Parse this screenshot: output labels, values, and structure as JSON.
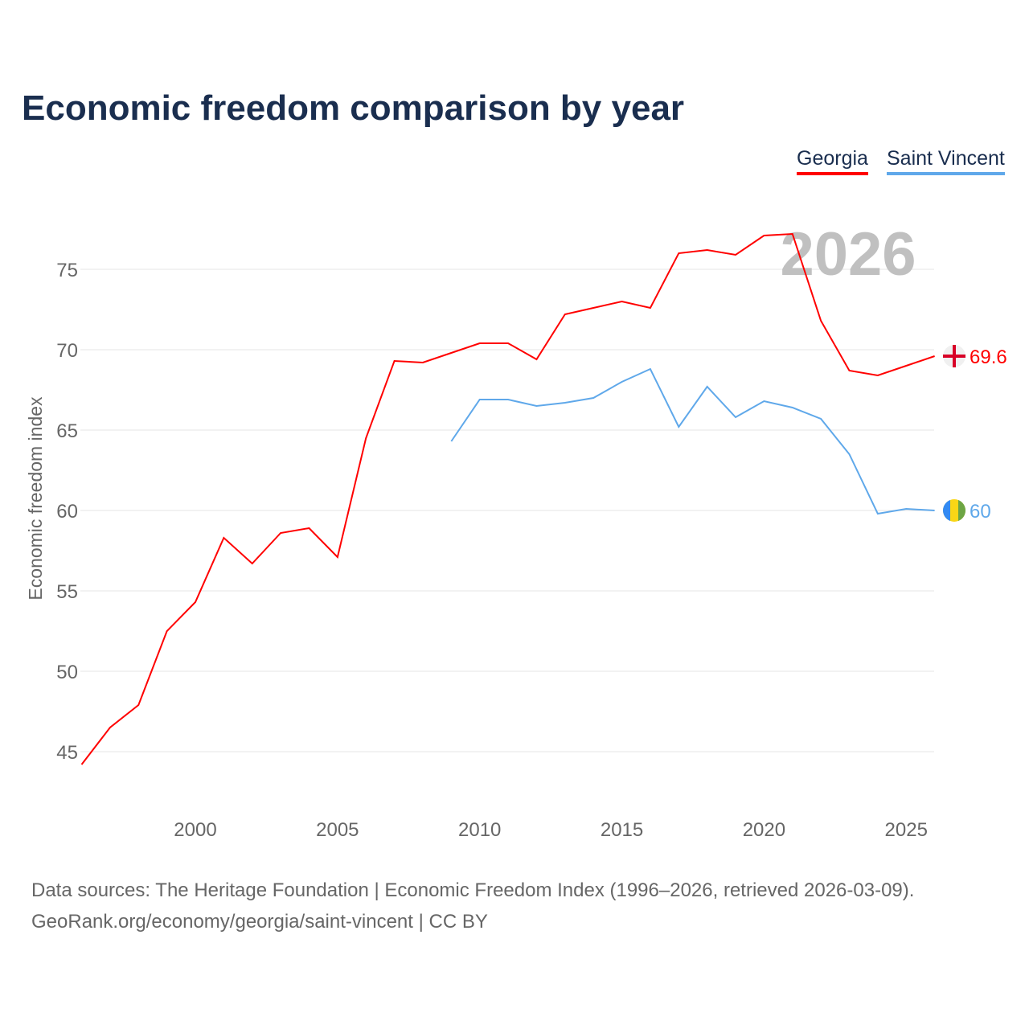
{
  "title": "Economic freedom comparison by year",
  "legend": [
    {
      "label": "Georgia",
      "color": "#ff0000"
    },
    {
      "label": "Saint Vincent",
      "color": "#5fa8ea"
    }
  ],
  "year_label": "2026",
  "source_line1": "Data sources: The Heritage Foundation | Economic Freedom Index (1996–2026, retrieved 2026-03-09).",
  "source_line2": "GeoRank.org/economy/georgia/saint-vincent | CC BY",
  "chart_data": {
    "type": "line",
    "title": "Economic freedom comparison by year",
    "xlabel": "",
    "ylabel": "Economic freedom index",
    "xlim": [
      1996,
      2026
    ],
    "ylim": [
      41.5,
      79
    ],
    "xticks": [
      2000,
      2005,
      2010,
      2015,
      2020,
      2025
    ],
    "yticks": [
      45,
      50,
      55,
      60,
      65,
      70,
      75
    ],
    "grid": true,
    "legend_position": "top-right",
    "series": [
      {
        "name": "Georgia",
        "color": "#ff0000",
        "end_label": "69.6",
        "x": [
          1996,
          1997,
          1998,
          1999,
          2000,
          2001,
          2002,
          2003,
          2004,
          2005,
          2006,
          2007,
          2008,
          2009,
          2010,
          2011,
          2012,
          2013,
          2014,
          2015,
          2016,
          2017,
          2018,
          2019,
          2020,
          2021,
          2022,
          2023,
          2024,
          2025,
          2026
        ],
        "y": [
          44.2,
          46.5,
          47.9,
          52.5,
          54.3,
          58.3,
          56.7,
          58.6,
          58.9,
          57.1,
          64.5,
          69.3,
          69.2,
          69.8,
          70.4,
          70.4,
          69.4,
          72.2,
          72.6,
          73.0,
          72.6,
          76.0,
          76.2,
          75.9,
          77.1,
          77.2,
          71.8,
          68.7,
          68.4,
          69.0,
          69.6
        ]
      },
      {
        "name": "Saint Vincent",
        "color": "#5fa8ea",
        "end_label": "60",
        "x": [
          2009,
          2010,
          2011,
          2012,
          2013,
          2014,
          2015,
          2016,
          2017,
          2018,
          2019,
          2020,
          2021,
          2022,
          2023,
          2024,
          2025,
          2026
        ],
        "y": [
          64.3,
          66.9,
          66.9,
          66.5,
          66.7,
          67.0,
          68.0,
          68.8,
          65.2,
          67.7,
          65.8,
          66.8,
          66.4,
          65.7,
          63.5,
          59.8,
          60.1,
          60.0
        ]
      }
    ]
  }
}
